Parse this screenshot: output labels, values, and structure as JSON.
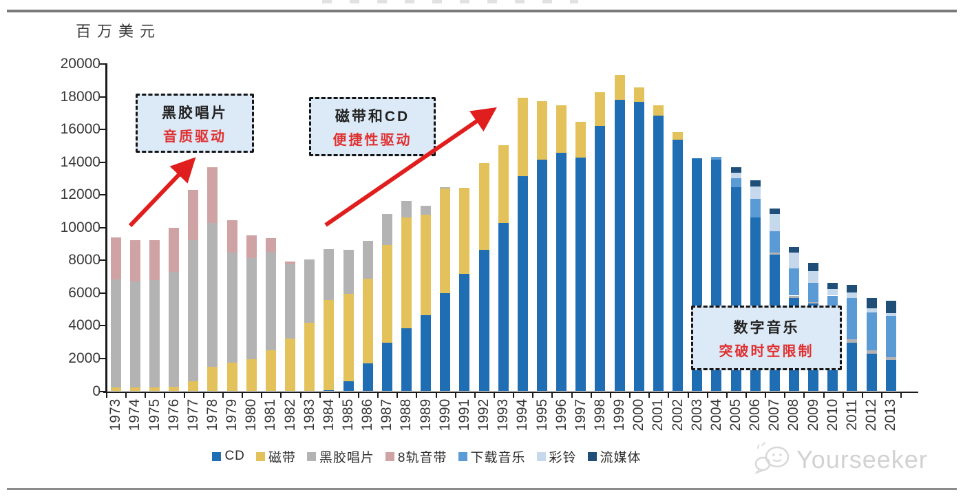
{
  "page": {
    "watermark": "Yourseeker"
  },
  "chart_data": {
    "type": "bar",
    "stacked": true,
    "title": "",
    "unit_label": "百万美元",
    "xlabel": "",
    "ylabel": "百万美元",
    "ylim": [
      0,
      20000
    ],
    "yticks": [
      0,
      2000,
      4000,
      6000,
      8000,
      10000,
      12000,
      14000,
      16000,
      18000,
      20000
    ],
    "grid": false,
    "legend_position": "bottom",
    "categories": [
      "1973",
      "1974",
      "1975",
      "1976",
      "1977",
      "1978",
      "1979",
      "1980",
      "1981",
      "1982",
      "1983",
      "1984",
      "1985",
      "1986",
      "1987",
      "1988",
      "1989",
      "1990",
      "1991",
      "1992",
      "1993",
      "1994",
      "1995",
      "1996",
      "1997",
      "1998",
      "1999",
      "2000",
      "2001",
      "2002",
      "2003",
      "2004",
      "2005",
      "2006",
      "2007",
      "2008",
      "2009",
      "2010",
      "2011",
      "2012",
      "2013"
    ],
    "series": [
      {
        "key": "cd",
        "name": "CD",
        "color": "#1F6EB3",
        "values": [
          0,
          0,
          0,
          0,
          0,
          0,
          0,
          0,
          0,
          0,
          0,
          80,
          600,
          1720,
          2950,
          3850,
          4660,
          5990,
          7180,
          8650,
          10290,
          13160,
          14180,
          14600,
          14280,
          16210,
          17820,
          17710,
          16840,
          15400,
          14250,
          14150,
          12460,
          10610,
          8340,
          5710,
          5360,
          4350,
          2980,
          2310,
          1900
        ]
      },
      {
        "key": "cassette",
        "name": "磁带",
        "color": "#E3C25B",
        "values": [
          250,
          240,
          250,
          270,
          600,
          1480,
          1750,
          1960,
          2520,
          3220,
          4170,
          5490,
          5350,
          5180,
          5980,
          6790,
          6120,
          6410,
          5250,
          5320,
          4760,
          4800,
          3570,
          2900,
          2210,
          2060,
          1510,
          880,
          630,
          460,
          0,
          0,
          0,
          0,
          0,
          0,
          0,
          0,
          0,
          0,
          0
        ]
      },
      {
        "key": "vinyl",
        "name": "黑胶唱片",
        "color": "#B3B3B3",
        "values": [
          6580,
          6490,
          6540,
          7020,
          8640,
          8810,
          6730,
          6170,
          6020,
          4560,
          3880,
          3120,
          2700,
          2310,
          1890,
          980,
          560,
          100,
          0,
          0,
          0,
          0,
          0,
          0,
          0,
          0,
          0,
          0,
          0,
          0,
          0,
          0,
          0,
          0,
          140,
          140,
          70,
          80,
          210,
          180,
          170
        ]
      },
      {
        "key": "track8",
        "name": "8轨音带",
        "color": "#CFA3A3",
        "values": [
          2560,
          2510,
          2450,
          2700,
          3080,
          3430,
          1990,
          1390,
          840,
          170,
          0,
          0,
          0,
          0,
          0,
          0,
          0,
          0,
          0,
          0,
          0,
          0,
          0,
          0,
          0,
          0,
          0,
          0,
          0,
          0,
          0,
          0,
          0,
          0,
          0,
          0,
          0,
          0,
          0,
          0,
          0
        ]
      },
      {
        "key": "download",
        "name": "下载音乐",
        "color": "#5B9BD5",
        "values": [
          0,
          0,
          0,
          0,
          0,
          0,
          0,
          0,
          0,
          0,
          0,
          0,
          0,
          0,
          0,
          0,
          0,
          0,
          0,
          0,
          0,
          0,
          0,
          0,
          0,
          0,
          0,
          0,
          0,
          0,
          0,
          200,
          550,
          1150,
          1290,
          1680,
          1190,
          1420,
          2520,
          2310,
          2520
        ]
      },
      {
        "key": "ringtone",
        "name": "彩铃",
        "color": "#C6D8EC",
        "values": [
          0,
          0,
          0,
          0,
          0,
          0,
          0,
          0,
          0,
          0,
          0,
          0,
          0,
          0,
          0,
          0,
          0,
          0,
          0,
          0,
          0,
          0,
          0,
          0,
          0,
          0,
          0,
          0,
          0,
          0,
          0,
          0,
          360,
          780,
          1050,
          950,
          740,
          420,
          310,
          280,
          170
        ]
      },
      {
        "key": "streaming",
        "name": "流媒体",
        "color": "#1F4E79",
        "values": [
          0,
          0,
          0,
          0,
          0,
          0,
          0,
          0,
          0,
          0,
          0,
          0,
          0,
          0,
          0,
          0,
          0,
          0,
          0,
          0,
          0,
          0,
          0,
          0,
          0,
          0,
          0,
          0,
          0,
          0,
          0,
          0,
          350,
          380,
          350,
          340,
          480,
          350,
          490,
          630,
          780
        ]
      }
    ],
    "annotations": [
      {
        "line1": "黑胶唱片",
        "line2": "音质驱动"
      },
      {
        "line1": "磁带和CD",
        "line2": "便捷性驱动"
      },
      {
        "line1": "数字音乐",
        "line2": "突破时空限制"
      }
    ],
    "colors": {
      "annotation_bg": "#DCE9F6",
      "annotation_border": "#141414",
      "annotation_text": "#222222",
      "annotation_accent": "#E03030",
      "arrow": "#E01E1E",
      "axis": "#1A1A1A",
      "label": "#383838",
      "rule": "#7A7A7A",
      "watermark": "#D2D2D2"
    }
  }
}
